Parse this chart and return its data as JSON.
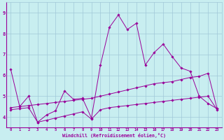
{
  "xlabel": "Windchill (Refroidissement éolien,°C)",
  "bg_color": "#c8eef0",
  "grid_color": "#a0c8d8",
  "line_color": "#990099",
  "x": [
    0,
    1,
    2,
    3,
    4,
    5,
    6,
    7,
    8,
    9,
    10,
    11,
    12,
    13,
    14,
    15,
    16,
    17,
    18,
    19,
    20,
    21,
    22,
    23
  ],
  "line1": [
    6.3,
    4.5,
    5.0,
    3.75,
    4.1,
    4.3,
    5.25,
    4.85,
    4.9,
    3.95,
    6.5,
    8.3,
    8.9,
    8.2,
    8.5,
    6.5,
    7.1,
    7.5,
    6.9,
    6.35,
    6.2,
    5.0,
    4.65,
    4.4
  ],
  "line2": [
    4.45,
    4.5,
    4.55,
    4.6,
    4.65,
    4.7,
    4.75,
    4.8,
    4.85,
    4.9,
    5.0,
    5.1,
    5.2,
    5.3,
    5.4,
    5.5,
    5.6,
    5.65,
    5.7,
    5.8,
    5.9,
    5.95,
    6.1,
    4.4
  ],
  "line3": [
    4.35,
    4.4,
    4.45,
    3.75,
    3.85,
    3.95,
    4.05,
    4.15,
    4.25,
    3.9,
    4.35,
    4.45,
    4.5,
    4.55,
    4.6,
    4.65,
    4.7,
    4.75,
    4.8,
    4.85,
    4.9,
    4.95,
    5.0,
    4.35
  ],
  "ylim": [
    3.5,
    9.5
  ],
  "yticks": [
    4,
    5,
    6,
    7,
    8,
    9
  ],
  "xlim": [
    -0.5,
    23.5
  ]
}
